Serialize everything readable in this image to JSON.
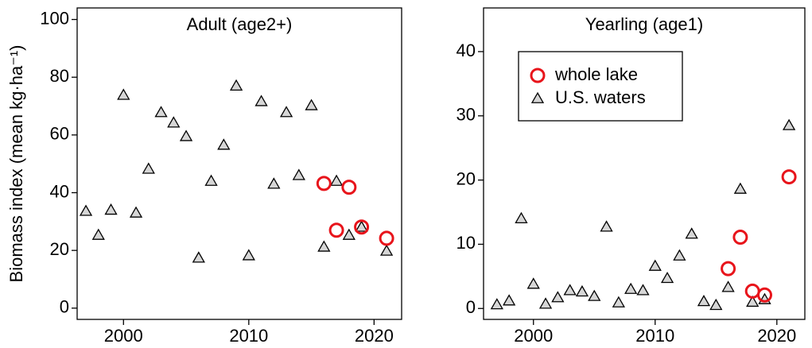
{
  "chart_data": [
    {
      "type": "scatter",
      "title": "Adult (age2+)",
      "ylabel": "Biomass index (mean kg·ha⁻¹)",
      "xlim": [
        1996.3,
        2022.2
      ],
      "ylim": [
        -3.9,
        104
      ],
      "xticks": [
        2000,
        2010,
        2020
      ],
      "yticks": [
        0,
        20,
        40,
        60,
        80,
        100
      ],
      "series": [
        {
          "name": "whole lake",
          "color": "#e8141b",
          "marker": "circle",
          "x": [
            2016,
            2017,
            2018,
            2019,
            2021
          ],
          "values": [
            43.2,
            27,
            41.9,
            28.1,
            24.2
          ]
        },
        {
          "name": "U.S. waters",
          "color": "#000000",
          "marker": "triangle",
          "x": [
            1997,
            1998,
            1999,
            2000,
            2001,
            2002,
            2003,
            2004,
            2005,
            2006,
            2007,
            2008,
            2009,
            2010,
            2011,
            2012,
            2013,
            2014,
            2015,
            2016,
            2017,
            2018,
            2019,
            2021
          ],
          "values": [
            33.6,
            25.3,
            34,
            73.8,
            33,
            48.2,
            67.8,
            64.2,
            59.5,
            17.4,
            44,
            56.5,
            77,
            18.2,
            71.6,
            43,
            67.8,
            46,
            70.2,
            21.2,
            44,
            25.3,
            28.1,
            19.8
          ]
        }
      ]
    },
    {
      "type": "scatter",
      "title": "Yearling (age1)",
      "legend": "upper left",
      "xlim": [
        1995.9,
        2022.3
      ],
      "ylim": [
        -1.7,
        46.8
      ],
      "xticks": [
        2000,
        2010,
        2020
      ],
      "yticks": [
        0,
        10,
        20,
        30,
        40
      ],
      "series": [
        {
          "name": "whole lake",
          "color": "#e8141b",
          "marker": "circle",
          "x": [
            2016,
            2017,
            2018,
            2019,
            2021
          ],
          "values": [
            6.2,
            11.1,
            2.7,
            2.1,
            20.5
          ]
        },
        {
          "name": "U.S. waters",
          "color": "#000000",
          "marker": "triangle",
          "x": [
            1997,
            1998,
            1999,
            2000,
            2001,
            2002,
            2003,
            2004,
            2005,
            2006,
            2007,
            2008,
            2009,
            2010,
            2011,
            2012,
            2013,
            2014,
            2015,
            2016,
            2017,
            2018,
            2019,
            2021
          ],
          "values": [
            0.6,
            1.2,
            14,
            3.8,
            0.7,
            1.7,
            2.8,
            2.6,
            1.9,
            12.7,
            0.9,
            3,
            2.8,
            6.6,
            4.7,
            8.2,
            11.6,
            1.1,
            0.5,
            3.3,
            18.6,
            1,
            1.4,
            28.5
          ]
        }
      ]
    }
  ]
}
